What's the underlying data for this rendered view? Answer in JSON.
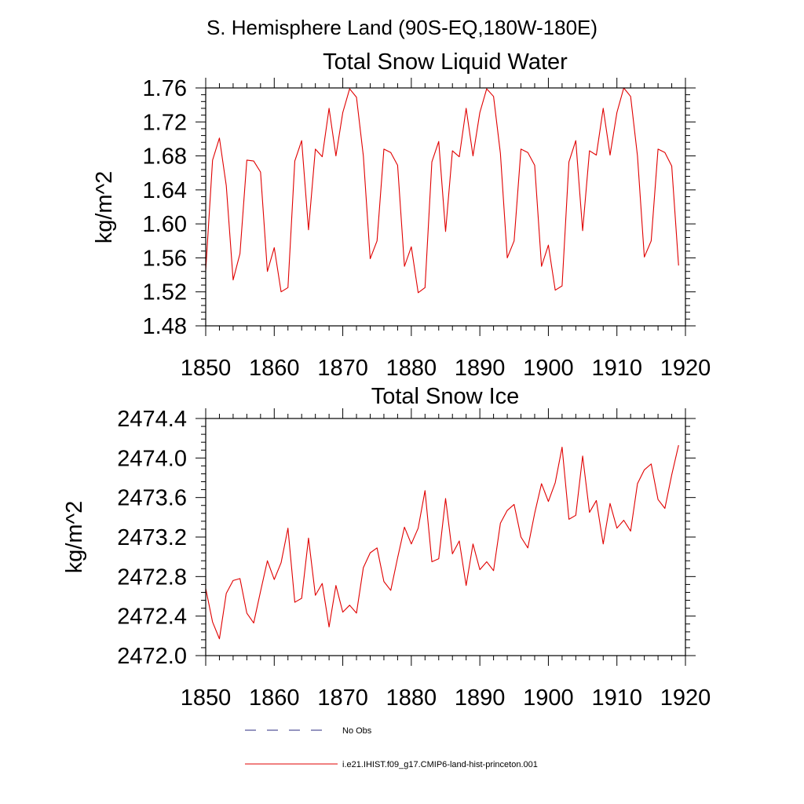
{
  "figure": {
    "title": "S. Hemisphere Land (90S-EQ,180W-180E)"
  },
  "legend": {
    "items": [
      {
        "label": "No Obs",
        "color": "#2b2b80",
        "dash": "dashed"
      },
      {
        "label": "i.e21.IHIST.f09_g17.CMIP6-land-hist-princeton.001",
        "color": "#e00000",
        "dash": "solid"
      }
    ]
  },
  "chart_data": [
    {
      "type": "line",
      "title": "Total Snow Liquid Water",
      "xlabel": "",
      "ylabel": "kg/m^2",
      "xlim": [
        1850,
        1920
      ],
      "ylim": [
        1.48,
        1.76
      ],
      "xticks": [
        1850,
        1860,
        1870,
        1880,
        1890,
        1900,
        1910,
        1920
      ],
      "yticks": [
        1.48,
        1.52,
        1.56,
        1.6,
        1.64,
        1.68,
        1.72,
        1.76
      ],
      "ytick_labels": [
        "1.48",
        "1.52",
        "1.56",
        "1.60",
        "1.64",
        "1.68",
        "1.72",
        "1.76"
      ],
      "line_color": "#e00000",
      "x_start": 1850,
      "series": [
        {
          "values": [
            1.545,
            1.675,
            1.701,
            1.645,
            1.534,
            1.565,
            1.675,
            1.674,
            1.661,
            1.544,
            1.572,
            1.52,
            1.525,
            1.674,
            1.698,
            1.593,
            1.688,
            1.679,
            1.736,
            1.68,
            1.731,
            1.759,
            1.749,
            1.68,
            1.559,
            1.58,
            1.688,
            1.684,
            1.669,
            1.55,
            1.573,
            1.519,
            1.525,
            1.673,
            1.697,
            1.591,
            1.686,
            1.679,
            1.736,
            1.68,
            1.731,
            1.759,
            1.75,
            1.683,
            1.56,
            1.58,
            1.688,
            1.684,
            1.669,
            1.55,
            1.575,
            1.522,
            1.527,
            1.673,
            1.698,
            1.592,
            1.686,
            1.681,
            1.736,
            1.681,
            1.731,
            1.76,
            1.75,
            1.68,
            1.561,
            1.58,
            1.688,
            1.684,
            1.668,
            1.551
          ]
        }
      ]
    },
    {
      "type": "line",
      "title": "Total Snow Ice",
      "xlabel": "",
      "ylabel": "kg/m^2",
      "xlim": [
        1850,
        1920
      ],
      "ylim": [
        2472.0,
        2474.4
      ],
      "xticks": [
        1850,
        1860,
        1870,
        1880,
        1890,
        1900,
        1910,
        1920
      ],
      "yticks": [
        2472.0,
        2472.4,
        2472.8,
        2473.2,
        2473.6,
        2474.0,
        2474.4
      ],
      "ytick_labels": [
        "2472.0",
        "2472.4",
        "2472.8",
        "2473.2",
        "2473.6",
        "2474.0",
        "2474.4"
      ],
      "line_color": "#e00000",
      "x_start": 1850,
      "series": [
        {
          "values": [
            2472.68,
            2472.34,
            2472.17,
            2472.63,
            2472.76,
            2472.78,
            2472.43,
            2472.33,
            2472.65,
            2472.96,
            2472.77,
            2472.94,
            2473.29,
            2472.54,
            2472.58,
            2473.19,
            2472.61,
            2472.73,
            2472.29,
            2472.71,
            2472.44,
            2472.51,
            2472.43,
            2472.89,
            2473.04,
            2473.09,
            2472.75,
            2472.66,
            2472.99,
            2473.3,
            2473.13,
            2473.29,
            2473.67,
            2472.95,
            2472.98,
            2473.59,
            2473.03,
            2473.16,
            2472.71,
            2473.13,
            2472.87,
            2472.95,
            2472.86,
            2473.34,
            2473.47,
            2473.53,
            2473.2,
            2473.09,
            2473.44,
            2473.74,
            2473.56,
            2473.75,
            2474.11,
            2473.38,
            2473.42,
            2474.02,
            2473.45,
            2473.57,
            2473.13,
            2473.54,
            2473.29,
            2473.37,
            2473.26,
            2473.74,
            2473.88,
            2473.94,
            2473.58,
            2473.49,
            2473.83,
            2474.13
          ]
        }
      ]
    }
  ]
}
